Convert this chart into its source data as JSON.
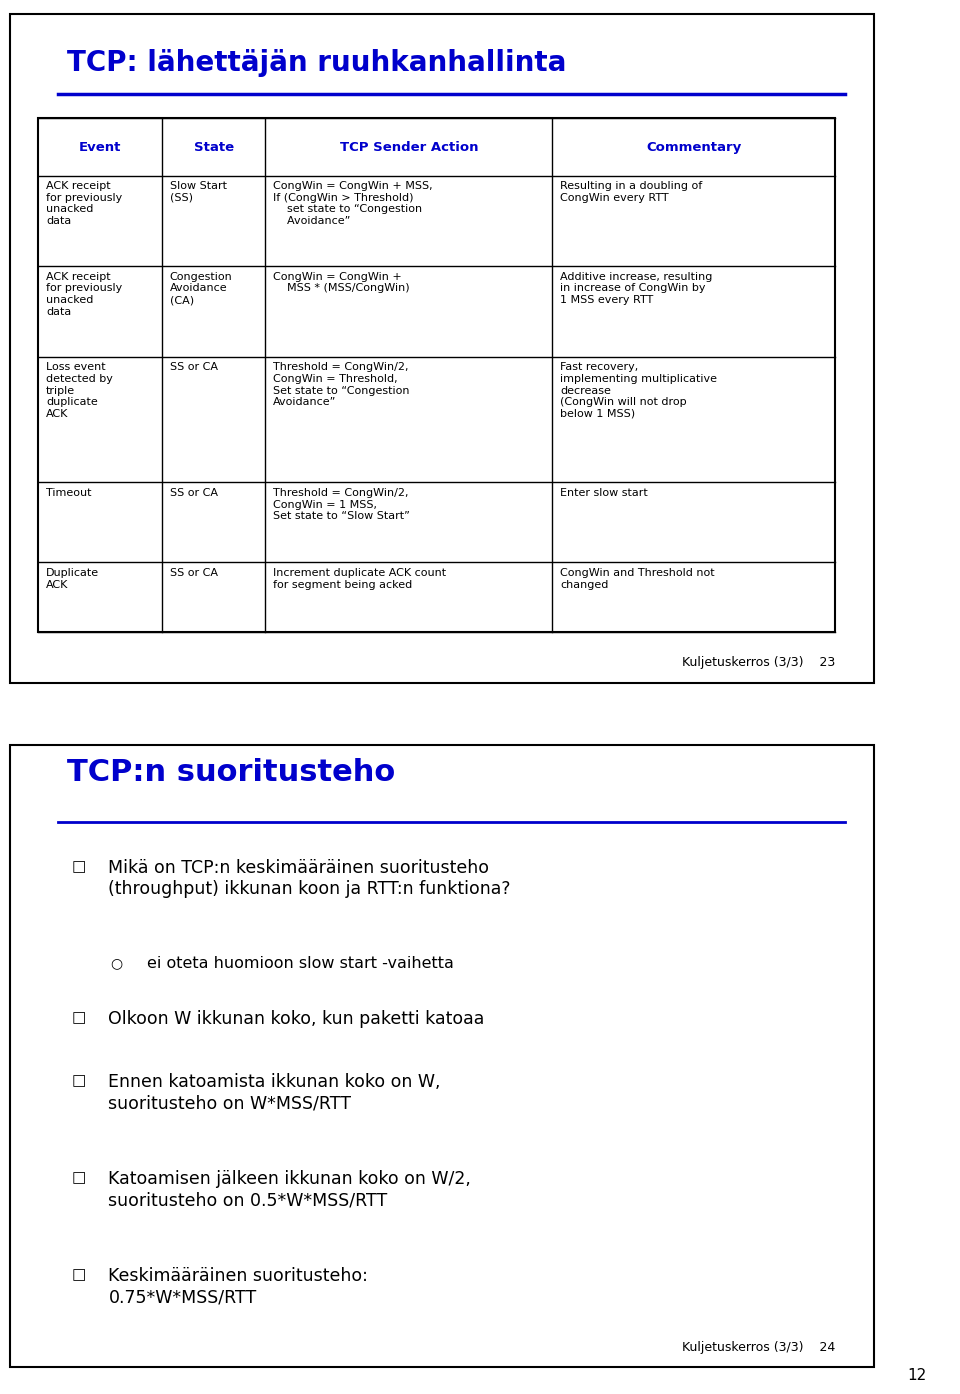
{
  "slide1": {
    "title": "TCP: lähettäjän ruuhkanhallinta",
    "title_color": "#0000CC",
    "header_color": "#0000CC",
    "table_headers": [
      "Event",
      "State",
      "TCP Sender Action",
      "Commentary"
    ],
    "rows": [
      {
        "event": "ACK receipt\nfor previously\nunacked\ndata",
        "state": "Slow Start\n(SS)",
        "action": "CongWin = CongWin + MSS,\nIf (CongWin > Threshold)\n    set state to “Congestion\n    Avoidance”",
        "commentary": "Resulting in a doubling of\nCongWin every RTT"
      },
      {
        "event": "ACK receipt\nfor previously\nunacked\ndata",
        "state": "Congestion\nAvoidance\n(CA)",
        "action": "CongWin = CongWin +\n    MSS * (MSS/CongWin)",
        "commentary": "Additive increase, resulting\nin increase of CongWin by\n1 MSS every RTT"
      },
      {
        "event": "Loss event\ndetected by\ntriple\nduplicate\nACK",
        "state": "SS or CA",
        "action": "Threshold = CongWin/2,\nCongWin = Threshold,\nSet state to “Congestion\nAvoidance”",
        "commentary": "Fast recovery,\nimplementing multiplicative\ndecrease\n(CongWin will not drop\nbelow 1 MSS)"
      },
      {
        "event": "Timeout",
        "state": "SS or CA",
        "action": "Threshold = CongWin/2,\nCongWin = 1 MSS,\nSet state to “Slow Start”",
        "commentary": "Enter slow start"
      },
      {
        "event": "Duplicate\nACK",
        "state": "SS or CA",
        "action": "Increment duplicate ACK count\nfor segment being acked",
        "commentary": "CongWin and Threshold not\nchanged"
      }
    ],
    "footer": "Kuljetuskerros (3/3)    23"
  },
  "slide2": {
    "title": "TCP:n suoritusteho",
    "title_color": "#0000CC",
    "bullets": [
      {
        "level": 0,
        "text": "Mikä on TCP:n keskimääräinen suoritusteho\n(throughput) ikkunan koon ja RTT:n funktiona?"
      },
      {
        "level": 1,
        "text": "ei oteta huomioon slow start -vaihetta"
      },
      {
        "level": 0,
        "text": "Olkoon W ikkunan koko, kun paketti katoaa"
      },
      {
        "level": 0,
        "text": "Ennen katoamista ikkunan koko on W,\nsuoritusteho on W*MSS/RTT"
      },
      {
        "level": 0,
        "text": "Katoamisen jälkeen ikkunan koko on W/2,\nsuoritusteho on 0.5*W*MSS/RTT"
      },
      {
        "level": 0,
        "text": "Keskimääräinen suoritusteho:\n0.75*W*MSS/RTT"
      }
    ],
    "footer": "Kuljetuskerros (3/3)    24"
  },
  "page_number": "12",
  "bg_color": "#FFFFFF"
}
